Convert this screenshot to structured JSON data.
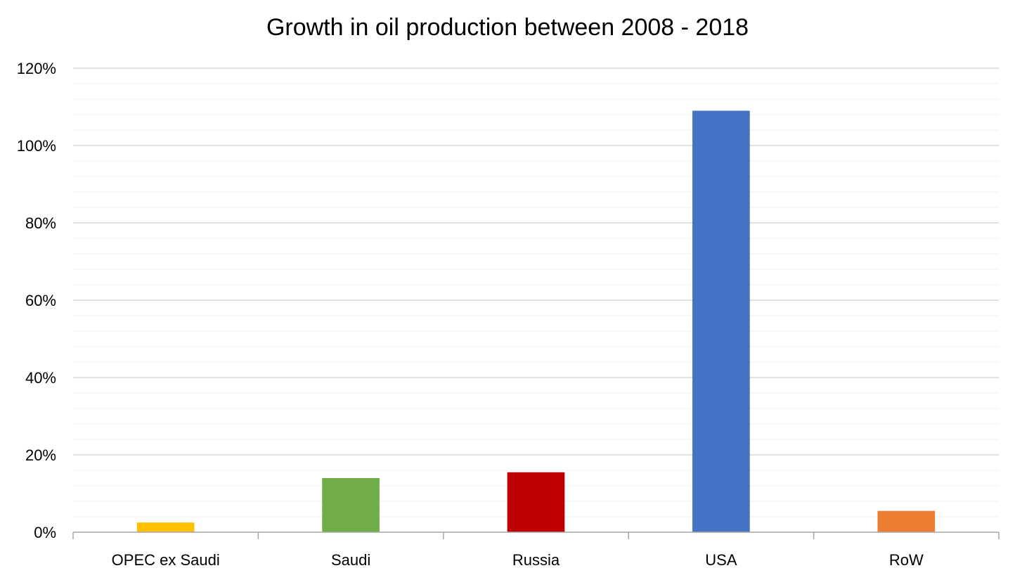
{
  "chart_data": {
    "type": "bar",
    "title": "Growth in oil production between 2008 - 2018",
    "xlabel": "",
    "ylabel": "",
    "categories": [
      "OPEC ex Saudi",
      "Saudi",
      "Russia",
      "USA",
      "RoW"
    ],
    "values": [
      2.5,
      14,
      15.5,
      109,
      5.5
    ],
    "colors": [
      "#FFC000",
      "#70AD47",
      "#C00000",
      "#4472C4",
      "#ED7D31"
    ],
    "ylim": [
      0,
      120
    ],
    "yticks": [
      0,
      20,
      40,
      60,
      80,
      100,
      120
    ],
    "ytick_labels": [
      "0%",
      "20%",
      "40%",
      "60%",
      "80%",
      "100%",
      "120%"
    ],
    "major_grid": true,
    "minor_grid": true,
    "gridline_color": "#D9D9D9",
    "minor_gridline_color": "#EFEFEF",
    "axis_color": "#A6A6A6",
    "legend": "none"
  }
}
